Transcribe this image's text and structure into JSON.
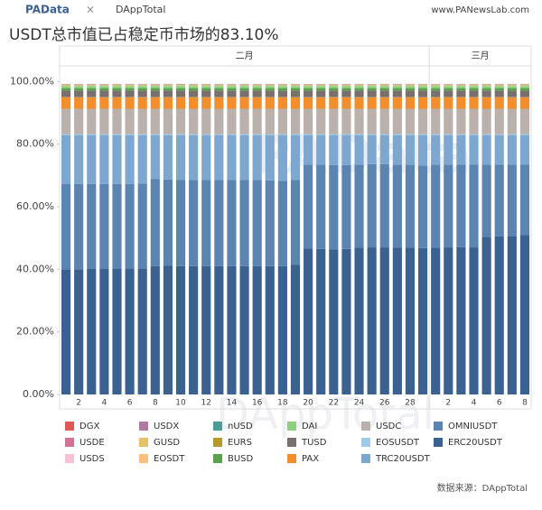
{
  "header": {
    "logo": "PAData",
    "cross": "×",
    "partner": "DAppTotal",
    "site": "www.PANewsLab.com"
  },
  "chart_data": {
    "type": "stacked_bar",
    "title": "USDT总市值已占稳定币市场的83.10%",
    "source": "数据来源：DAppTotal",
    "groups": [
      "二月",
      "三月"
    ],
    "categories": [
      null,
      "2",
      null,
      "4",
      null,
      "6",
      null,
      "8",
      null,
      "10",
      null,
      "12",
      null,
      "14",
      null,
      "16",
      null,
      "18",
      null,
      "20",
      null,
      "22",
      null,
      "24",
      null,
      "26",
      null,
      "28",
      null,
      null,
      "2",
      null,
      "4",
      null,
      "6",
      null,
      "8"
    ],
    "ylim": [
      0,
      105
    ],
    "yticks": [
      {
        "value": 0,
        "label": "0.00%"
      },
      {
        "value": 20,
        "label": "20.00%"
      },
      {
        "value": 40,
        "label": "40.00%"
      },
      {
        "value": 60,
        "label": "60.00%"
      },
      {
        "value": 80,
        "label": "80.00%"
      },
      {
        "value": 100,
        "label": "100.00%"
      }
    ],
    "series": [
      {
        "name": "DGX",
        "color": "#e15759",
        "values": [
          0.05,
          0.05,
          0.05,
          0.05,
          0.05,
          0.05,
          0.05,
          0.05,
          0.05,
          0.05,
          0.05,
          0.05,
          0.05,
          0.05,
          0.05,
          0.05,
          0.05,
          0.05,
          0.05,
          0.05,
          0.05,
          0.05,
          0.05,
          0.05,
          0.05,
          0.05,
          0.05,
          0.05,
          0.05,
          0.05,
          0.05,
          0.05,
          0.05,
          0.05,
          0.05,
          0.05,
          0.05
        ]
      },
      {
        "name": "USDX",
        "color": "#b07aa1",
        "values": [
          0.05,
          0.05,
          0.05,
          0.05,
          0.05,
          0.05,
          0.05,
          0.05,
          0.05,
          0.05,
          0.05,
          0.05,
          0.05,
          0.05,
          0.05,
          0.05,
          0.05,
          0.05,
          0.05,
          0.05,
          0.05,
          0.05,
          0.05,
          0.05,
          0.05,
          0.05,
          0.05,
          0.05,
          0.05,
          0.05,
          0.05,
          0.05,
          0.05,
          0.05,
          0.05,
          0.05,
          0.05
        ]
      },
      {
        "name": "nUSD",
        "color": "#4e9a96",
        "values": [
          0.1,
          0.1,
          0.1,
          0.1,
          0.1,
          0.1,
          0.1,
          0.1,
          0.1,
          0.1,
          0.1,
          0.1,
          0.1,
          0.1,
          0.1,
          0.1,
          0.1,
          0.1,
          0.1,
          0.1,
          0.1,
          0.1,
          0.1,
          0.1,
          0.1,
          0.1,
          0.1,
          0.1,
          0.1,
          0.1,
          0.1,
          0.1,
          0.1,
          0.1,
          0.1,
          0.1,
          0.1
        ]
      },
      {
        "name": "DAI",
        "color": "#8cd17d",
        "values": [
          0.7,
          0.7,
          0.7,
          0.7,
          0.7,
          0.7,
          0.7,
          0.7,
          0.7,
          0.7,
          0.7,
          0.7,
          0.7,
          0.7,
          0.7,
          0.7,
          0.7,
          0.7,
          0.7,
          0.7,
          0.7,
          0.7,
          0.7,
          0.7,
          0.7,
          0.7,
          0.7,
          0.7,
          0.7,
          0.7,
          0.7,
          0.7,
          0.7,
          0.7,
          0.7,
          0.7,
          0.7
        ]
      },
      {
        "name": "USDC",
        "color": "#bab0ac",
        "values": [
          8.1,
          8.1,
          8.1,
          8.1,
          8.1,
          8.1,
          8.1,
          8.1,
          8.1,
          8.1,
          8.1,
          8.1,
          8.1,
          8.1,
          8.1,
          8.1,
          8.1,
          8.1,
          8.1,
          8.1,
          8.1,
          8.1,
          8.1,
          8.1,
          8.1,
          8.1,
          8.1,
          8.1,
          8.1,
          8.1,
          8.1,
          8.1,
          8.1,
          8.1,
          8.1,
          8.1,
          8.1
        ]
      },
      {
        "name": "OMNIUSDT",
        "color": "#5b84b1",
        "values": [
          27.2,
          27.3,
          27.2,
          27.1,
          27.0,
          27.0,
          27.1,
          27.8,
          27.6,
          27.5,
          27.6,
          27.6,
          27.6,
          27.6,
          27.5,
          27.5,
          27.4,
          27.3,
          27.0,
          26.8,
          26.9,
          26.9,
          26.8,
          26.5,
          26.6,
          26.6,
          26.5,
          26.5,
          26.4,
          26.5,
          26.4,
          26.4,
          26.5,
          23.0,
          22.9,
          22.8,
          22.5
        ]
      },
      {
        "name": "USDE",
        "color": "#d37295",
        "values": [
          0.05,
          0.05,
          0.05,
          0.05,
          0.05,
          0.05,
          0.05,
          0.05,
          0.05,
          0.05,
          0.05,
          0.05,
          0.05,
          0.05,
          0.05,
          0.05,
          0.05,
          0.05,
          0.05,
          0.05,
          0.05,
          0.05,
          0.05,
          0.05,
          0.05,
          0.05,
          0.05,
          0.05,
          0.05,
          0.05,
          0.05,
          0.05,
          0.05,
          0.05,
          0.05,
          0.05,
          0.05
        ]
      },
      {
        "name": "GUSD",
        "color": "#e6c167",
        "values": [
          0.3,
          0.3,
          0.3,
          0.3,
          0.3,
          0.3,
          0.3,
          0.3,
          0.3,
          0.3,
          0.3,
          0.3,
          0.3,
          0.3,
          0.3,
          0.3,
          0.3,
          0.3,
          0.3,
          0.3,
          0.3,
          0.3,
          0.3,
          0.3,
          0.3,
          0.3,
          0.3,
          0.3,
          0.3,
          0.3,
          0.3,
          0.3,
          0.3,
          0.3,
          0.3,
          0.3,
          0.3
        ]
      },
      {
        "name": "EURS",
        "color": "#b6992d",
        "values": [
          0.05,
          0.05,
          0.05,
          0.05,
          0.05,
          0.05,
          0.05,
          0.05,
          0.05,
          0.05,
          0.05,
          0.05,
          0.05,
          0.05,
          0.05,
          0.05,
          0.05,
          0.05,
          0.05,
          0.05,
          0.05,
          0.05,
          0.05,
          0.05,
          0.05,
          0.05,
          0.05,
          0.05,
          0.05,
          0.05,
          0.05,
          0.05,
          0.05,
          0.05,
          0.05,
          0.05,
          0.05
        ]
      },
      {
        "name": "TUSD",
        "color": "#79706e",
        "values": [
          2.1,
          2.1,
          2.1,
          2.1,
          2.1,
          2.1,
          2.1,
          2.1,
          2.1,
          2.1,
          2.1,
          2.1,
          2.1,
          2.1,
          2.1,
          2.1,
          2.1,
          2.1,
          2.1,
          2.1,
          2.1,
          2.1,
          2.1,
          2.1,
          2.1,
          2.1,
          2.1,
          2.1,
          2.1,
          2.1,
          2.1,
          2.1,
          2.1,
          2.1,
          2.1,
          2.1,
          2.1
        ]
      },
      {
        "name": "EOSUSDT",
        "color": "#a0cbe8",
        "values": [
          0.3,
          0.3,
          0.3,
          0.3,
          0.3,
          0.3,
          0.3,
          0.3,
          0.3,
          0.3,
          0.3,
          0.3,
          0.3,
          0.3,
          0.3,
          0.3,
          0.3,
          0.3,
          0.3,
          0.3,
          0.3,
          0.3,
          0.3,
          0.3,
          0.3,
          0.3,
          0.3,
          0.3,
          0.3,
          0.3,
          0.3,
          0.3,
          0.3,
          0.3,
          0.3,
          0.3,
          0.3
        ]
      },
      {
        "name": "ERC20USDT",
        "color": "#3b6191",
        "values": [
          40.0,
          40.0,
          40.1,
          40.2,
          40.3,
          40.3,
          40.3,
          41.0,
          41.1,
          41.0,
          41.0,
          41.0,
          41.0,
          41.0,
          41.0,
          41.0,
          41.0,
          41.0,
          41.5,
          46.6,
          46.5,
          46.4,
          46.5,
          46.9,
          47.0,
          47.0,
          46.9,
          46.9,
          46.8,
          46.9,
          47.0,
          47.1,
          47.0,
          50.4,
          50.5,
          50.6,
          51.0
        ]
      },
      {
        "name": "USDS",
        "color": "#fabfd2",
        "values": [
          0.05,
          0.05,
          0.05,
          0.05,
          0.05,
          0.05,
          0.05,
          0.05,
          0.05,
          0.05,
          0.05,
          0.05,
          0.05,
          0.05,
          0.05,
          0.05,
          0.05,
          0.05,
          0.05,
          0.05,
          0.05,
          0.05,
          0.05,
          0.05,
          0.05,
          0.05,
          0.05,
          0.05,
          0.05,
          0.05,
          0.05,
          0.05,
          0.05,
          0.05,
          0.05,
          0.05,
          0.05
        ]
      },
      {
        "name": "EOSDT",
        "color": "#ffbe7d",
        "values": [
          0.1,
          0.1,
          0.1,
          0.1,
          0.1,
          0.1,
          0.1,
          0.1,
          0.1,
          0.1,
          0.1,
          0.1,
          0.1,
          0.1,
          0.1,
          0.1,
          0.1,
          0.1,
          0.1,
          0.1,
          0.1,
          0.1,
          0.1,
          0.1,
          0.1,
          0.1,
          0.1,
          0.1,
          0.1,
          0.1,
          0.1,
          0.1,
          0.1,
          0.1,
          0.1,
          0.1,
          0.1
        ]
      },
      {
        "name": "BUSD",
        "color": "#59a14f",
        "values": [
          0.8,
          0.8,
          0.8,
          0.8,
          0.8,
          0.8,
          0.8,
          0.8,
          0.8,
          0.8,
          0.8,
          0.8,
          0.8,
          0.8,
          0.8,
          0.8,
          0.8,
          0.8,
          0.8,
          0.8,
          0.8,
          0.8,
          0.8,
          0.8,
          0.8,
          0.8,
          0.8,
          0.8,
          0.8,
          0.8,
          0.8,
          0.8,
          0.8,
          0.8,
          0.8,
          0.8,
          0.8
        ]
      },
      {
        "name": "PAX",
        "color": "#f28e2b",
        "values": [
          3.6,
          3.6,
          3.6,
          3.6,
          3.6,
          3.6,
          3.6,
          3.6,
          3.6,
          3.6,
          3.6,
          3.6,
          3.6,
          3.6,
          3.6,
          3.6,
          3.6,
          3.6,
          3.6,
          3.6,
          3.6,
          3.6,
          3.6,
          3.6,
          3.6,
          3.6,
          3.6,
          3.6,
          3.6,
          3.6,
          3.6,
          3.6,
          3.6,
          3.6,
          3.6,
          3.6,
          3.6
        ]
      },
      {
        "name": "TRC20USDT",
        "color": "#7ea7d0",
        "values": [
          15.7,
          15.6,
          15.6,
          15.6,
          15.6,
          15.6,
          15.5,
          14.1,
          14.2,
          14.4,
          14.3,
          14.3,
          14.3,
          14.3,
          14.4,
          14.4,
          14.5,
          14.6,
          14.4,
          9.5,
          9.5,
          9.6,
          9.6,
          9.5,
          9.3,
          9.3,
          9.5,
          9.5,
          9.7,
          9.5,
          9.5,
          9.4,
          9.4,
          9.5,
          9.5,
          9.5,
          9.4
        ]
      }
    ]
  }
}
